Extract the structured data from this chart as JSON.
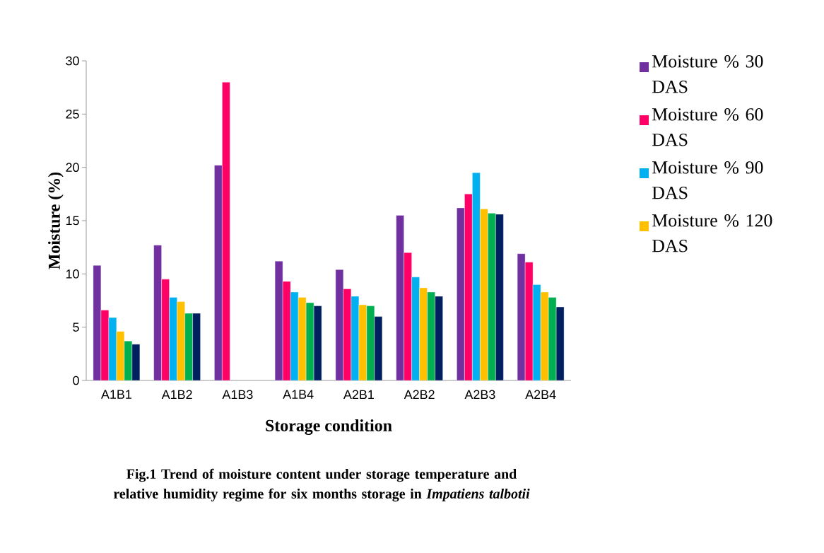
{
  "chart_data": {
    "type": "bar",
    "title": "Fig.1 Trend of moisture content under storage temperature and relative humidity regime for six months storage in *Impatiens talbotii*",
    "xlabel": "Storage condition",
    "ylabel": "Moisture (%)",
    "categories": [
      "A1B1",
      "A1B2",
      "A1B3",
      "A1B4",
      "A2B1",
      "A2B2",
      "A2B3",
      "A2B4"
    ],
    "series": [
      {
        "name": "Moisture % 30 DAS",
        "color": "#7030a0",
        "values": [
          10.8,
          12.7,
          20.2,
          11.2,
          10.4,
          15.5,
          16.2,
          11.9
        ]
      },
      {
        "name": "Moisture % 60 DAS",
        "color": "#ff0066",
        "values": [
          6.6,
          9.5,
          28.0,
          9.3,
          8.6,
          12.0,
          17.5,
          11.1
        ]
      },
      {
        "name": "Moisture % 90 DAS",
        "color": "#00b0f0",
        "values": [
          5.9,
          7.8,
          null,
          8.3,
          7.9,
          9.7,
          19.5,
          9.0
        ]
      },
      {
        "name": "Moisture % 120 DAS",
        "color": "#ffc000",
        "values": [
          4.6,
          7.4,
          null,
          7.8,
          7.1,
          8.7,
          16.1,
          8.3
        ]
      },
      {
        "color": "#00b050",
        "values": [
          3.7,
          6.3,
          null,
          7.3,
          7.0,
          8.3,
          15.7,
          7.8
        ]
      },
      {
        "color": "#002060",
        "values": [
          3.4,
          6.3,
          null,
          7.0,
          6.0,
          7.9,
          15.6,
          6.9
        ]
      }
    ],
    "ylim": [
      0,
      30
    ],
    "yticks": [
      0,
      5,
      10,
      15,
      20,
      25,
      30
    ],
    "legend": "right"
  }
}
